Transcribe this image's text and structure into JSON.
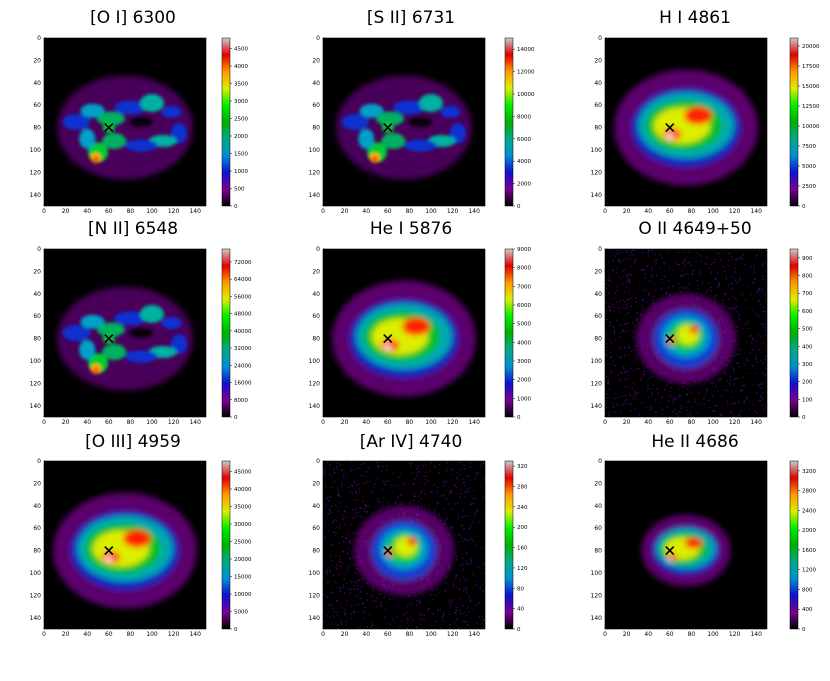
{
  "chart_data": [
    {
      "type": "heatmap",
      "title": "[O I] 6300",
      "xticks": [
        "0",
        "20",
        "40",
        "60",
        "80",
        "100",
        "120",
        "140"
      ],
      "yticks": [
        "0",
        "20",
        "40",
        "60",
        "80",
        "100",
        "120",
        "140"
      ],
      "xlim": [
        0,
        150
      ],
      "ylim": [
        0,
        150
      ],
      "colorbar_ticks": [
        "0",
        "500",
        "1000",
        "1500",
        "2000",
        "2500",
        "3000",
        "3500",
        "4000",
        "4500"
      ],
      "colorbar_range": [
        0,
        4800
      ],
      "marker": {
        "symbol": "x",
        "x": 60,
        "y": 80
      },
      "morphology": "ring"
    },
    {
      "type": "heatmap",
      "title": "[S II] 6731",
      "xticks": [
        "0",
        "20",
        "40",
        "60",
        "80",
        "100",
        "120",
        "140"
      ],
      "yticks": [
        "0",
        "20",
        "40",
        "60",
        "80",
        "100",
        "120",
        "140"
      ],
      "xlim": [
        0,
        150
      ],
      "ylim": [
        0,
        150
      ],
      "colorbar_ticks": [
        "0",
        "2000",
        "4000",
        "6000",
        "8000",
        "10000",
        "12000",
        "14000"
      ],
      "colorbar_range": [
        0,
        15000
      ],
      "marker": {
        "symbol": "x",
        "x": 60,
        "y": 80
      },
      "morphology": "ring"
    },
    {
      "type": "heatmap",
      "title": "H I 4861",
      "xticks": [
        "0",
        "20",
        "40",
        "60",
        "80",
        "100",
        "120",
        "140"
      ],
      "yticks": [
        "0",
        "20",
        "40",
        "60",
        "80",
        "100",
        "120",
        "140"
      ],
      "xlim": [
        0,
        150
      ],
      "ylim": [
        0,
        150
      ],
      "colorbar_ticks": [
        "0",
        "2500",
        "5000",
        "7500",
        "10000",
        "12500",
        "15000",
        "17500",
        "20000"
      ],
      "colorbar_range": [
        0,
        21000
      ],
      "marker": {
        "symbol": "x",
        "x": 60,
        "y": 80
      },
      "morphology": "blob"
    },
    {
      "type": "heatmap",
      "title": "[N II] 6548",
      "xticks": [
        "0",
        "20",
        "40",
        "60",
        "80",
        "100",
        "120",
        "140"
      ],
      "yticks": [
        "0",
        "20",
        "40",
        "60",
        "80",
        "100",
        "120",
        "140"
      ],
      "xlim": [
        0,
        150
      ],
      "ylim": [
        0,
        150
      ],
      "colorbar_ticks": [
        "0",
        "8000",
        "16000",
        "24000",
        "32000",
        "40000",
        "48000",
        "56000",
        "64000",
        "72000"
      ],
      "colorbar_range": [
        0,
        78000
      ],
      "marker": {
        "symbol": "x",
        "x": 60,
        "y": 80
      },
      "morphology": "ring"
    },
    {
      "type": "heatmap",
      "title": "He I 5876",
      "xticks": [
        "0",
        "20",
        "40",
        "60",
        "80",
        "100",
        "120",
        "140"
      ],
      "yticks": [
        "0",
        "20",
        "40",
        "60",
        "80",
        "100",
        "120",
        "140"
      ],
      "xlim": [
        0,
        150
      ],
      "ylim": [
        0,
        150
      ],
      "colorbar_ticks": [
        "0",
        "1000",
        "2000",
        "3000",
        "4000",
        "5000",
        "6000",
        "7000",
        "8000",
        "9000"
      ],
      "colorbar_range": [
        0,
        9000
      ],
      "marker": {
        "symbol": "x",
        "x": 60,
        "y": 80
      },
      "morphology": "blob"
    },
    {
      "type": "heatmap",
      "title": "O II 4649+50",
      "xticks": [
        "0",
        "20",
        "40",
        "60",
        "80",
        "100",
        "120",
        "140"
      ],
      "yticks": [
        "0",
        "20",
        "40",
        "60",
        "80",
        "100",
        "120",
        "140"
      ],
      "xlim": [
        0,
        150
      ],
      "ylim": [
        0,
        150
      ],
      "colorbar_ticks": [
        "0",
        "100",
        "200",
        "300",
        "400",
        "500",
        "600",
        "700",
        "800",
        "900"
      ],
      "colorbar_range": [
        0,
        950
      ],
      "marker": {
        "symbol": "x",
        "x": 60,
        "y": 80
      },
      "morphology": "noisy-core"
    },
    {
      "type": "heatmap",
      "title": "[O III] 4959",
      "xticks": [
        "0",
        "20",
        "40",
        "60",
        "80",
        "100",
        "120",
        "140"
      ],
      "yticks": [
        "0",
        "20",
        "40",
        "60",
        "80",
        "100",
        "120",
        "140"
      ],
      "xlim": [
        0,
        150
      ],
      "ylim": [
        0,
        150
      ],
      "colorbar_ticks": [
        "0",
        "5000",
        "10000",
        "15000",
        "20000",
        "25000",
        "30000",
        "35000",
        "40000",
        "45000"
      ],
      "colorbar_range": [
        0,
        48000
      ],
      "marker": {
        "symbol": "x",
        "x": 60,
        "y": 80
      },
      "morphology": "blob"
    },
    {
      "type": "heatmap",
      "title": "[Ar IV] 4740",
      "xticks": [
        "0",
        "20",
        "40",
        "60",
        "80",
        "100",
        "120",
        "140"
      ],
      "yticks": [
        "0",
        "20",
        "40",
        "60",
        "80",
        "100",
        "120",
        "140"
      ],
      "xlim": [
        0,
        150
      ],
      "ylim": [
        0,
        150
      ],
      "colorbar_ticks": [
        "0",
        "40",
        "80",
        "120",
        "160",
        "200",
        "240",
        "280",
        "320"
      ],
      "colorbar_range": [
        0,
        330
      ],
      "marker": {
        "symbol": "x",
        "x": 60,
        "y": 80
      },
      "morphology": "noisy-core"
    },
    {
      "type": "heatmap",
      "title": "He II 4686",
      "xticks": [
        "0",
        "20",
        "40",
        "60",
        "80",
        "100",
        "120",
        "140"
      ],
      "yticks": [
        "0",
        "20",
        "40",
        "60",
        "80",
        "100",
        "120",
        "140"
      ],
      "xlim": [
        0,
        150
      ],
      "ylim": [
        0,
        150
      ],
      "colorbar_ticks": [
        "0",
        "400",
        "800",
        "1200",
        "1600",
        "2000",
        "2400",
        "2800",
        "3200"
      ],
      "colorbar_range": [
        0,
        3400
      ],
      "marker": {
        "symbol": "x",
        "x": 60,
        "y": 80
      },
      "morphology": "compact"
    }
  ]
}
